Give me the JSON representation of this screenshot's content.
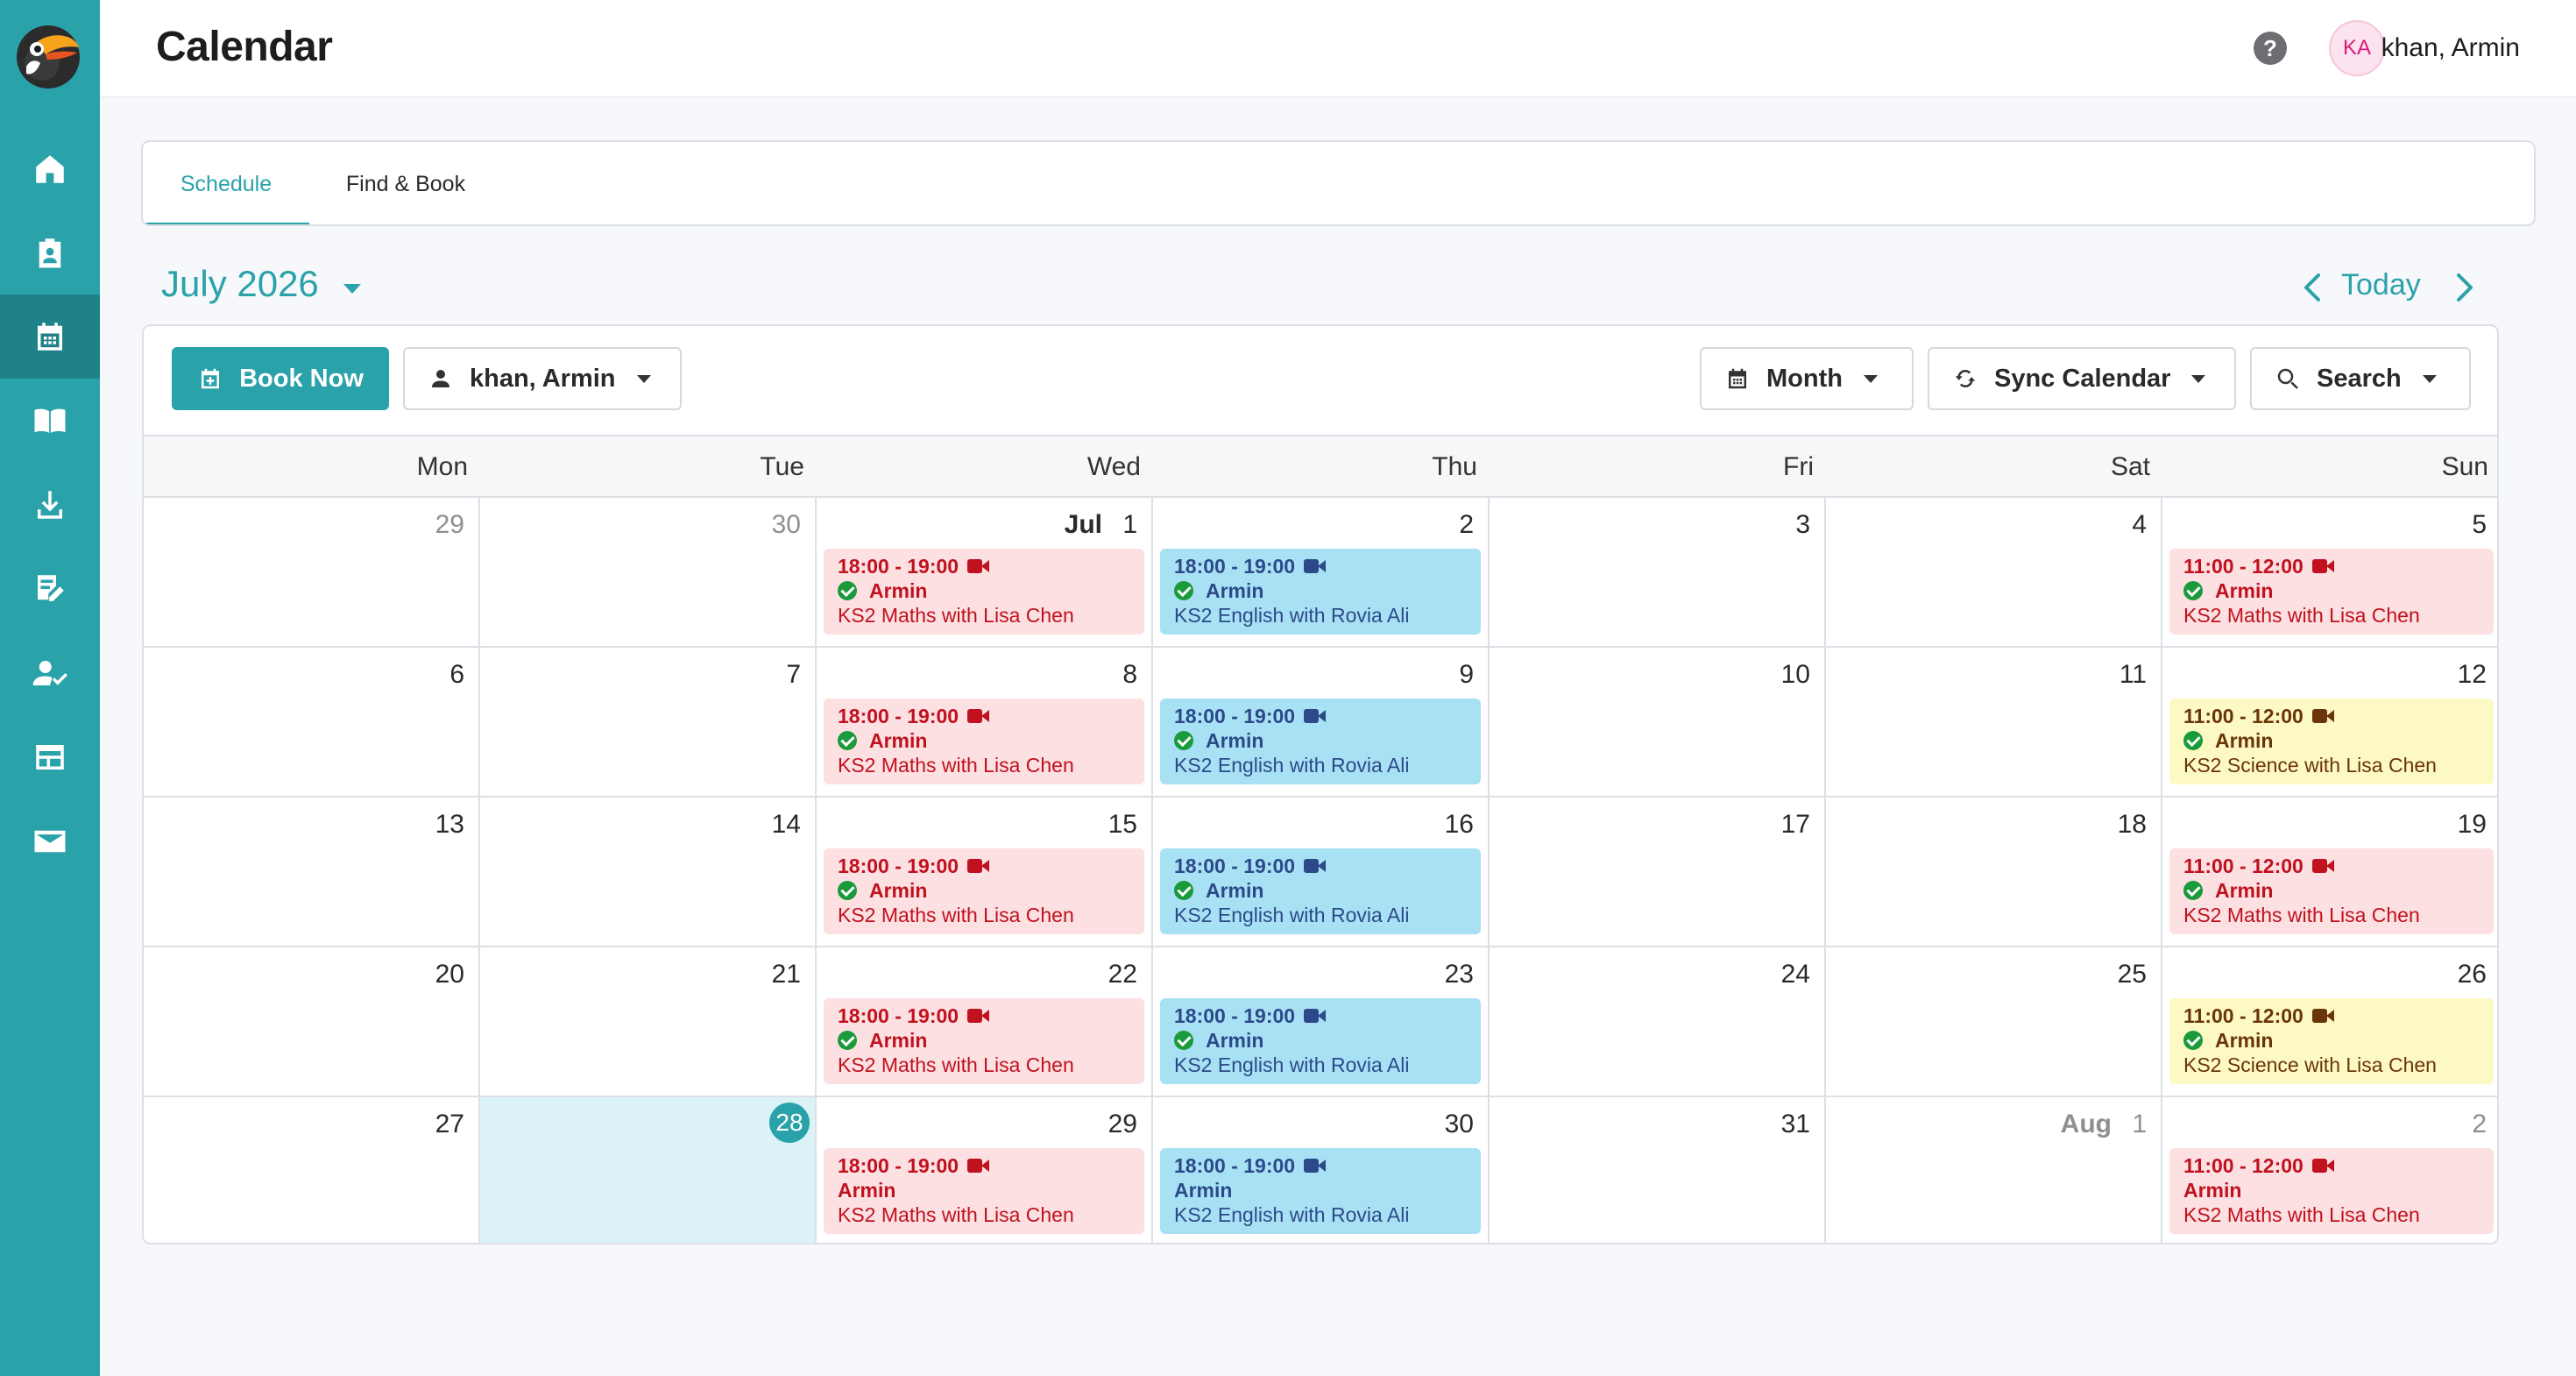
{
  "header": {
    "title": "Calendar",
    "avatar_initials": "KA",
    "user_name": "khan, Armin"
  },
  "sidebar": {
    "icons": [
      "home-icon",
      "badge-icon",
      "calendar-icon",
      "book-open-icon",
      "download-icon",
      "edit-note-icon",
      "person-check-icon",
      "table-icon",
      "mail-icon"
    ],
    "active": "calendar-icon"
  },
  "tabs": [
    {
      "label": "Schedule",
      "active": true
    },
    {
      "label": "Find & Book",
      "active": false
    }
  ],
  "calendar": {
    "month_title": "July 2026",
    "today_label": "Today",
    "toolbar": {
      "book_now": "Book Now",
      "person": "khan, Armin",
      "view": "Month",
      "sync": "Sync Calendar",
      "search": "Search"
    },
    "weekdays": [
      "Mon",
      "Tue",
      "Wed",
      "Thu",
      "Fri",
      "Sat",
      "Sun"
    ],
    "weeks": [
      [
        {
          "day": "29",
          "muted": true
        },
        {
          "day": "30",
          "muted": true
        },
        {
          "day": "1",
          "month_label": "Jul",
          "event": {
            "color": "red",
            "time": "18:00 - 19:00",
            "name": "Armin",
            "confirmed": true,
            "desc": "KS2 Maths with Lisa Chen"
          }
        },
        {
          "day": "2",
          "event": {
            "color": "blue",
            "time": "18:00 - 19:00",
            "name": "Armin",
            "confirmed": true,
            "desc": "KS2 English with Rovia Ali"
          }
        },
        {
          "day": "3"
        },
        {
          "day": "4"
        },
        {
          "day": "5",
          "event": {
            "color": "red",
            "time": "11:00 - 12:00",
            "name": "Armin",
            "confirmed": true,
            "desc": "KS2 Maths with Lisa Chen"
          }
        }
      ],
      [
        {
          "day": "6"
        },
        {
          "day": "7"
        },
        {
          "day": "8",
          "event": {
            "color": "red",
            "time": "18:00 - 19:00",
            "name": "Armin",
            "confirmed": true,
            "desc": "KS2 Maths with Lisa Chen"
          }
        },
        {
          "day": "9",
          "event": {
            "color": "blue",
            "time": "18:00 - 19:00",
            "name": "Armin",
            "confirmed": true,
            "desc": "KS2 English with Rovia Ali"
          }
        },
        {
          "day": "10"
        },
        {
          "day": "11"
        },
        {
          "day": "12",
          "event": {
            "color": "yellow",
            "time": "11:00 - 12:00",
            "name": "Armin",
            "confirmed": true,
            "desc": "KS2 Science with Lisa Chen"
          }
        }
      ],
      [
        {
          "day": "13"
        },
        {
          "day": "14"
        },
        {
          "day": "15",
          "event": {
            "color": "red",
            "time": "18:00 - 19:00",
            "name": "Armin",
            "confirmed": true,
            "desc": "KS2 Maths with Lisa Chen"
          }
        },
        {
          "day": "16",
          "event": {
            "color": "blue",
            "time": "18:00 - 19:00",
            "name": "Armin",
            "confirmed": true,
            "desc": "KS2 English with Rovia Ali"
          }
        },
        {
          "day": "17"
        },
        {
          "day": "18"
        },
        {
          "day": "19",
          "event": {
            "color": "red",
            "time": "11:00 - 12:00",
            "name": "Armin",
            "confirmed": true,
            "desc": "KS2 Maths with Lisa Chen"
          }
        }
      ],
      [
        {
          "day": "20"
        },
        {
          "day": "21"
        },
        {
          "day": "22",
          "event": {
            "color": "red",
            "time": "18:00 - 19:00",
            "name": "Armin",
            "confirmed": true,
            "desc": "KS2 Maths with Lisa Chen"
          }
        },
        {
          "day": "23",
          "event": {
            "color": "blue",
            "time": "18:00 - 19:00",
            "name": "Armin",
            "confirmed": true,
            "desc": "KS2 English with Rovia Ali"
          }
        },
        {
          "day": "24"
        },
        {
          "day": "25"
        },
        {
          "day": "26",
          "event": {
            "color": "yellow",
            "time": "11:00 - 12:00",
            "name": "Armin",
            "confirmed": true,
            "desc": "KS2 Science with Lisa Chen"
          }
        }
      ],
      [
        {
          "day": "27"
        },
        {
          "day": "28",
          "today": true
        },
        {
          "day": "29",
          "event": {
            "color": "red",
            "time": "18:00 - 19:00",
            "name": "Armin",
            "confirmed": false,
            "desc": "KS2 Maths with Lisa Chen"
          }
        },
        {
          "day": "30",
          "event": {
            "color": "blue",
            "time": "18:00 - 19:00",
            "name": "Armin",
            "confirmed": false,
            "desc": "KS2 English with Rovia Ali"
          }
        },
        {
          "day": "31"
        },
        {
          "day": "1",
          "month_label": "Aug",
          "muted": true
        },
        {
          "day": "2",
          "muted": true,
          "event": {
            "color": "red",
            "time": "11:00 - 12:00",
            "name": "Armin",
            "confirmed": false,
            "desc": "KS2 Maths with Lisa Chen"
          }
        }
      ]
    ]
  },
  "colors": {
    "brand": "#2aa2a9",
    "event_red_bg": "#fde0e1",
    "event_blue_bg": "#a8e1f4",
    "event_yellow_bg": "#fdf9c4",
    "today_bg": "#dbf3f7"
  }
}
